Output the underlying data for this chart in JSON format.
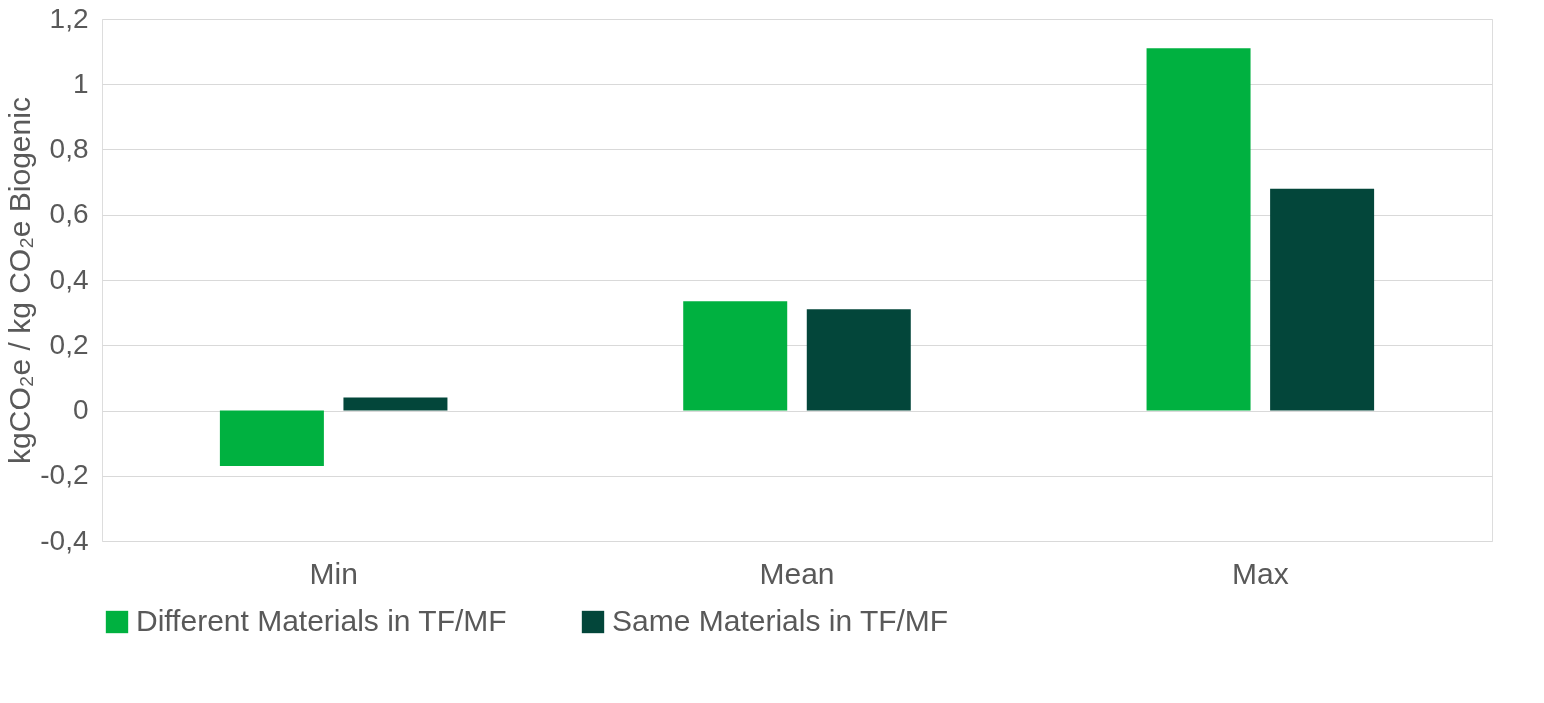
{
  "chart_data": {
    "type": "bar",
    "ylabel": "kgCO₂e / kg CO₂e  Biogenic",
    "categories": [
      "Min",
      "Mean",
      "Max"
    ],
    "series": [
      {
        "name": "Different Materials in TF/MF",
        "color": "#00b140",
        "values": [
          -0.17,
          0.335,
          1.11
        ]
      },
      {
        "name": "Same Materials in TF/MF",
        "color": "#03463a",
        "values": [
          0.04,
          0.31,
          0.68
        ]
      }
    ],
    "ylim": [
      -0.4,
      1.2
    ],
    "yticks": [
      {
        "value": -0.4,
        "label": "-0,4"
      },
      {
        "value": -0.2,
        "label": "-0,2"
      },
      {
        "value": 0,
        "label": "0"
      },
      {
        "value": 0.2,
        "label": "0,2"
      },
      {
        "value": 0.4,
        "label": "0,4"
      },
      {
        "value": 0.6,
        "label": "0,6"
      },
      {
        "value": 0.8,
        "label": "0,8"
      },
      {
        "value": 1,
        "label": "1"
      },
      {
        "value": 1.2,
        "label": "1,2"
      }
    ],
    "grid": "y",
    "legend": "bottom"
  }
}
